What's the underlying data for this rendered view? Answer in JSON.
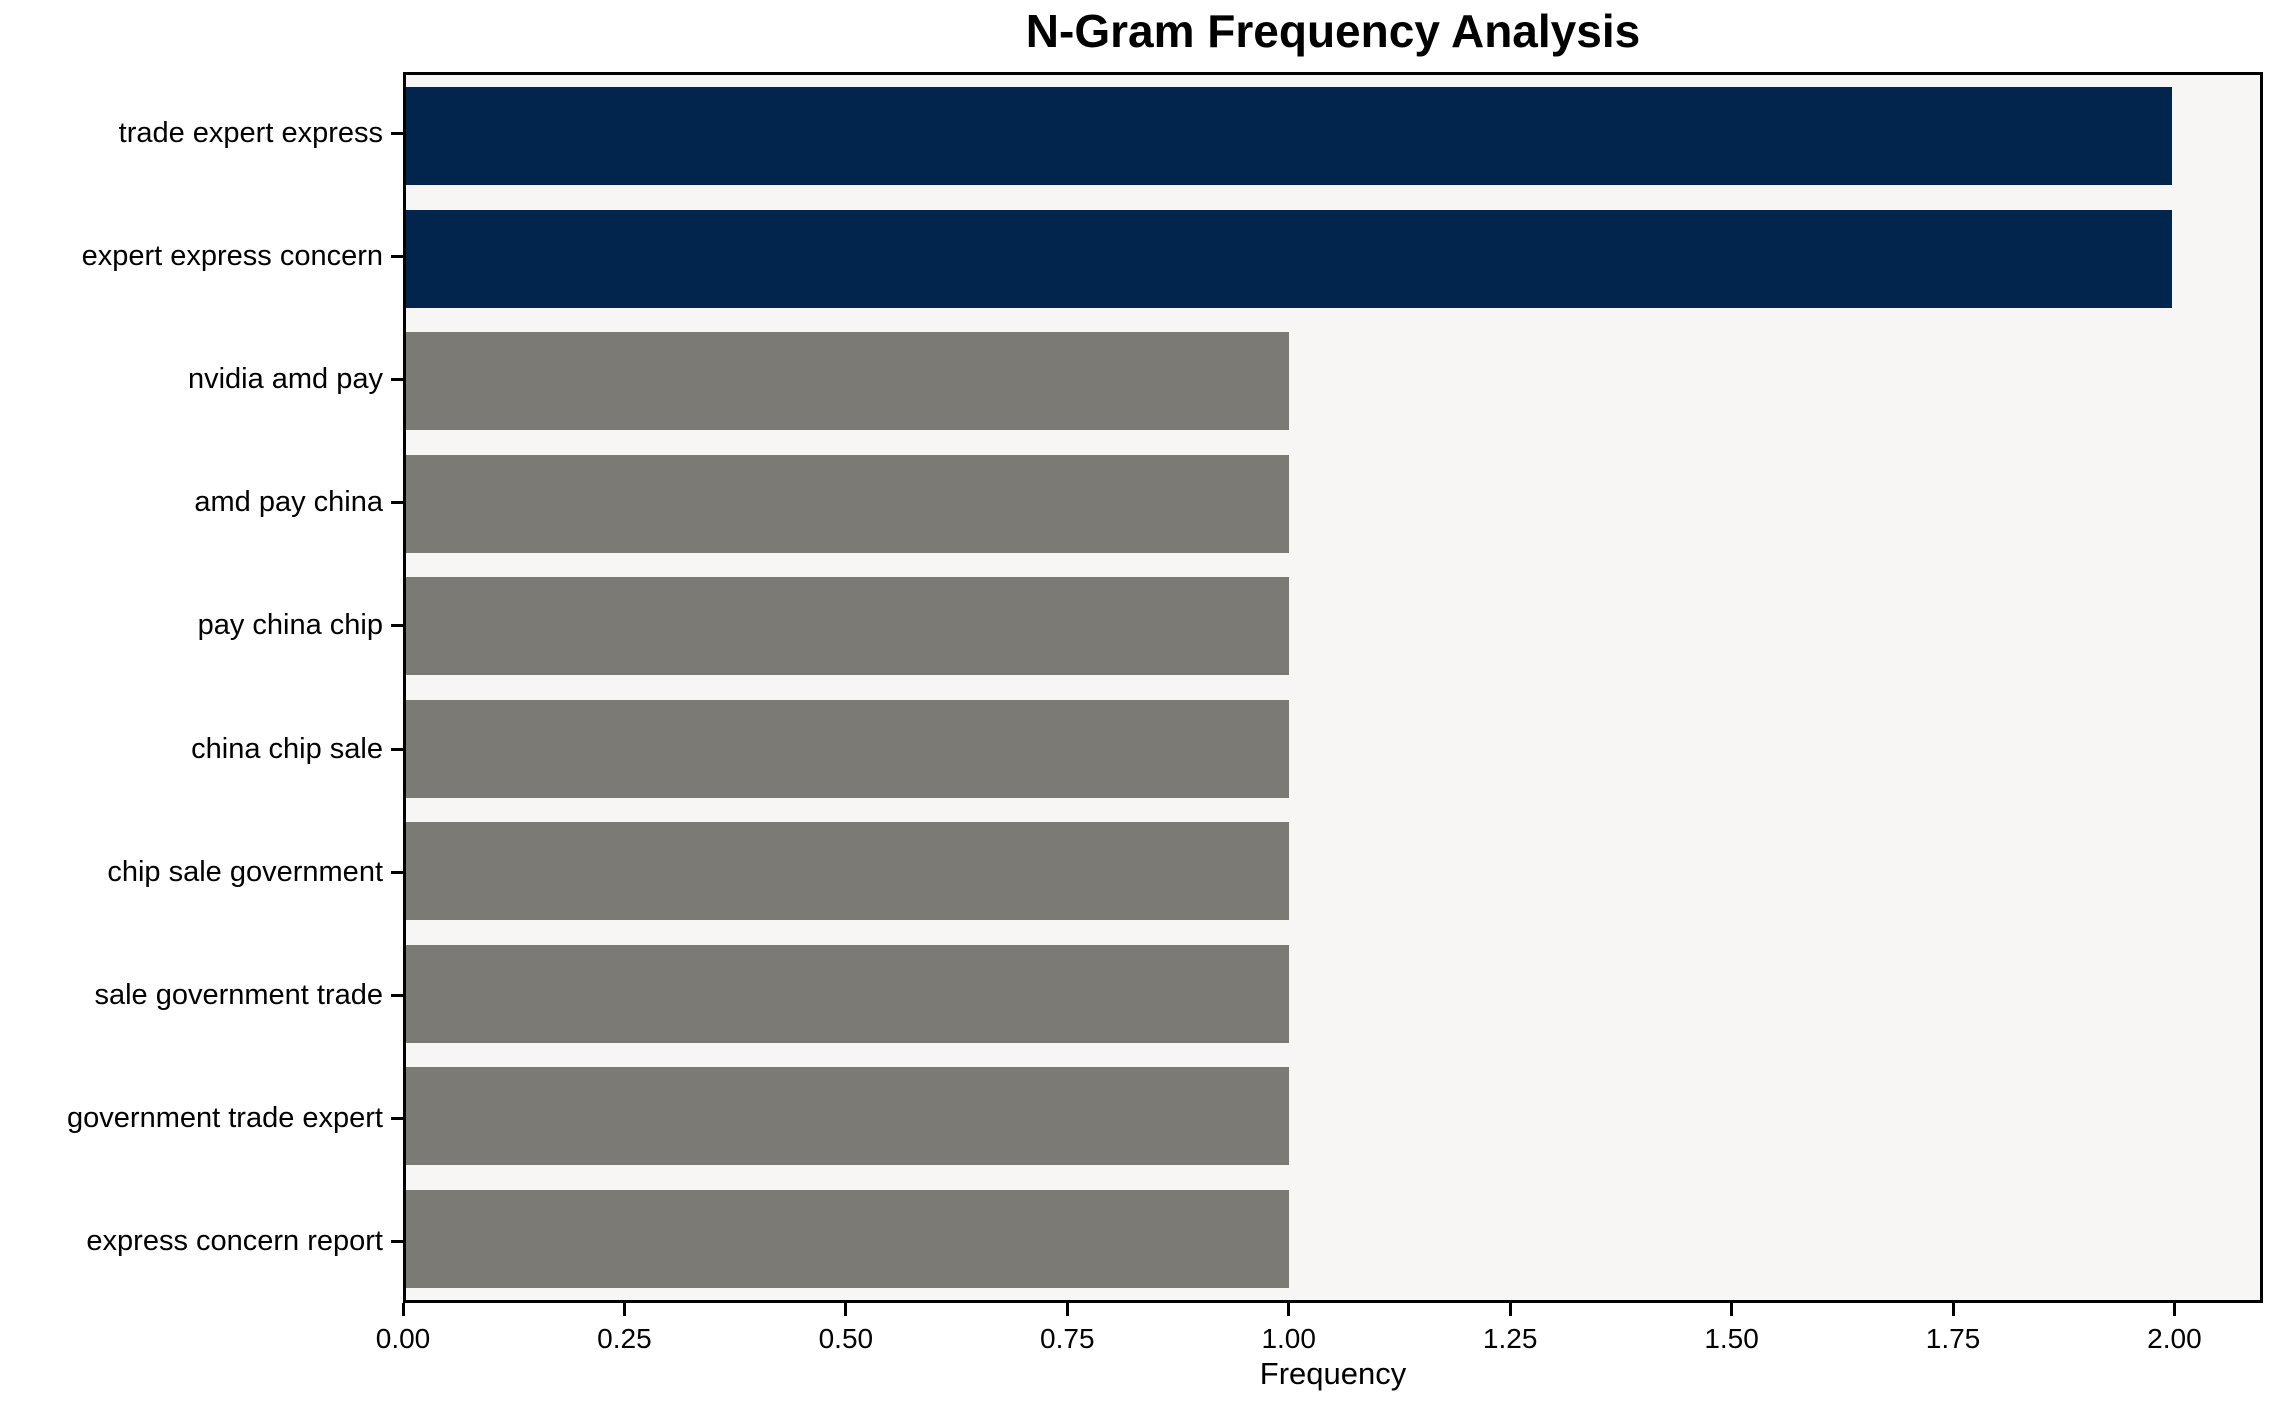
{
  "chart_data": {
    "type": "bar",
    "orientation": "horizontal",
    "title": "N-Gram Frequency Analysis",
    "xlabel": "Frequency",
    "ylabel": "",
    "categories": [
      "trade expert express",
      "expert express concern",
      "nvidia amd pay",
      "amd pay china",
      "pay china chip",
      "china chip sale",
      "chip sale government",
      "sale government trade",
      "government trade expert",
      "express concern report"
    ],
    "values": [
      2,
      2,
      1,
      1,
      1,
      1,
      1,
      1,
      1,
      1
    ],
    "bar_colors": [
      "#02254d",
      "#02254d",
      "#7b7a75",
      "#7b7a75",
      "#7b7a75",
      "#7b7a75",
      "#7b7a75",
      "#7b7a75",
      "#7b7a75",
      "#7b7a75"
    ],
    "highlight_color": "#02254d",
    "base_color": "#7b7a75",
    "plot_bg": "#f7f6f5",
    "xlim": [
      0,
      2.1
    ],
    "xtick_values": [
      0,
      0.25,
      0.5,
      0.75,
      1.0,
      1.25,
      1.5,
      1.75,
      2.0
    ],
    "xtick_labels": [
      "0.00",
      "0.25",
      "0.50",
      "0.75",
      "1.00",
      "1.25",
      "1.50",
      "1.75",
      "2.00"
    ],
    "grid": false,
    "legend": null
  }
}
